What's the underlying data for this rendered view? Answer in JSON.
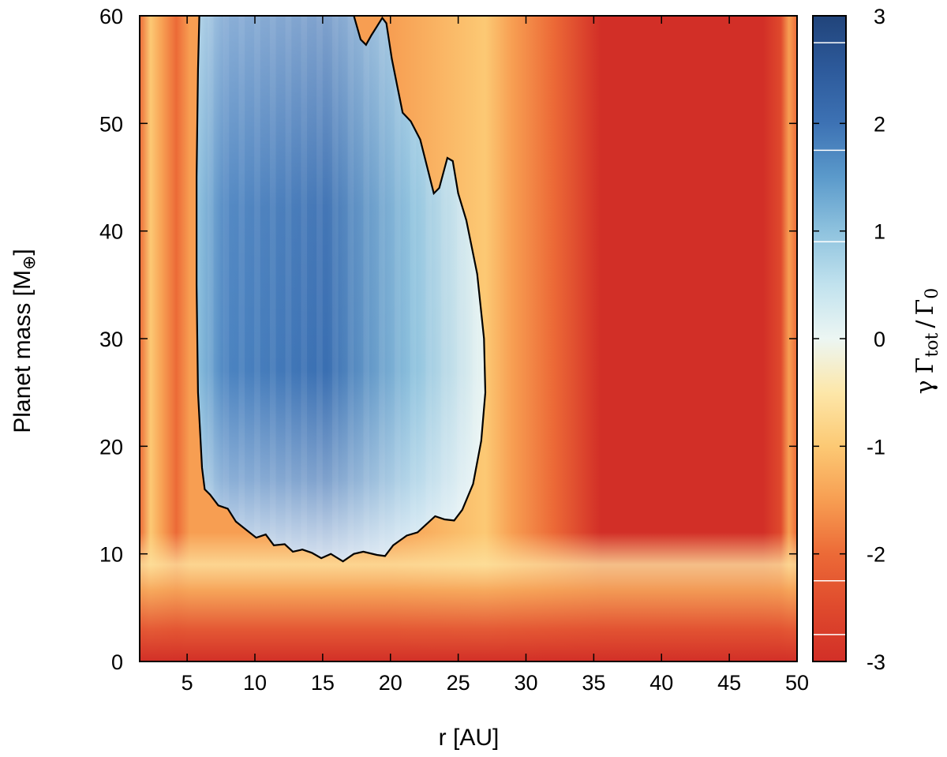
{
  "chart_data": {
    "type": "heatmap",
    "title": "",
    "xlabel": "r [AU]",
    "ylabel_main": "Planet mass [M",
    "ylabel_sub": "⊕",
    "ylabel_close": "]",
    "xlim": [
      1.5,
      50
    ],
    "ylim": [
      0,
      60
    ],
    "x_ticks": [
      5,
      10,
      15,
      20,
      25,
      30,
      35,
      40,
      45,
      50
    ],
    "y_ticks": [
      0,
      10,
      20,
      30,
      40,
      50,
      60
    ],
    "colorbar": {
      "label_gamma": "γ",
      "label_Gamma": "Γ",
      "label_tot": "tot",
      "label_slash": "/",
      "label_0": "0",
      "range": [
        -3,
        3
      ],
      "ticks": [
        3,
        2,
        1,
        0,
        -1,
        -2,
        -3
      ],
      "contour_levels": [
        2.75,
        1.75,
        0.9,
        -2.25,
        -2.75
      ],
      "colors": [
        {
          "value": -3,
          "color": "#d22f27"
        },
        {
          "value": -2.5,
          "color": "#df4a2d"
        },
        {
          "value": -2,
          "color": "#ec6a37"
        },
        {
          "value": -1.5,
          "color": "#f79e52"
        },
        {
          "value": -1,
          "color": "#fcc974"
        },
        {
          "value": -0.5,
          "color": "#fde7a9"
        },
        {
          "value": 0,
          "color": "#ecf6f3"
        },
        {
          "value": 0.5,
          "color": "#c1e2ee"
        },
        {
          "value": 1,
          "color": "#8ec2de"
        },
        {
          "value": 1.5,
          "color": "#5b9acb"
        },
        {
          "value": 2,
          "color": "#3d72b4"
        },
        {
          "value": 2.5,
          "color": "#2d5a9b"
        },
        {
          "value": 3,
          "color": "#21447a"
        }
      ]
    },
    "zero_contour": [
      [
        5.9,
        60
      ],
      [
        5.8,
        55
      ],
      [
        5.7,
        45
      ],
      [
        5.7,
        35
      ],
      [
        5.8,
        25
      ],
      [
        6.1,
        18
      ],
      [
        6.3,
        16
      ],
      [
        6.7,
        15.5
      ],
      [
        7.3,
        14.5
      ],
      [
        8.0,
        14.2
      ],
      [
        8.6,
        13
      ],
      [
        9.4,
        12.2
      ],
      [
        10.1,
        11.5
      ],
      [
        10.8,
        11.8
      ],
      [
        11.4,
        10.8
      ],
      [
        12.2,
        10.9
      ],
      [
        12.8,
        10.2
      ],
      [
        13.5,
        10.4
      ],
      [
        14.2,
        10.1
      ],
      [
        14.9,
        9.6
      ],
      [
        15.6,
        10.0
      ],
      [
        16.5,
        9.3
      ],
      [
        17.3,
        10.0
      ],
      [
        18.0,
        10.2
      ],
      [
        19.0,
        9.9
      ],
      [
        19.6,
        9.8
      ],
      [
        20.2,
        10.8
      ],
      [
        21.2,
        11.7
      ],
      [
        22.0,
        12.0
      ],
      [
        23.3,
        13.5
      ],
      [
        24.0,
        13.2
      ],
      [
        24.7,
        13.1
      ],
      [
        25.3,
        14.1
      ],
      [
        26.1,
        16.5
      ],
      [
        26.7,
        20.5
      ],
      [
        27.0,
        25
      ],
      [
        26.9,
        30
      ],
      [
        26.4,
        36
      ],
      [
        25.6,
        41
      ],
      [
        25.0,
        43.5
      ],
      [
        24.6,
        46.5
      ],
      [
        24.2,
        46.8
      ],
      [
        23.6,
        44
      ],
      [
        23.2,
        43.5
      ],
      [
        22.7,
        46
      ],
      [
        22.2,
        48.5
      ],
      [
        21.5,
        50.2
      ],
      [
        20.9,
        51.0
      ],
      [
        20.5,
        53.5
      ],
      [
        20.1,
        56
      ],
      [
        19.8,
        58.5
      ],
      [
        19.7,
        59.3
      ],
      [
        19.4,
        59.8
      ],
      [
        19.0,
        59.0
      ],
      [
        18.6,
        58.2
      ],
      [
        18.2,
        57.3
      ],
      [
        17.8,
        57.8
      ],
      [
        17.3,
        60
      ]
    ]
  }
}
